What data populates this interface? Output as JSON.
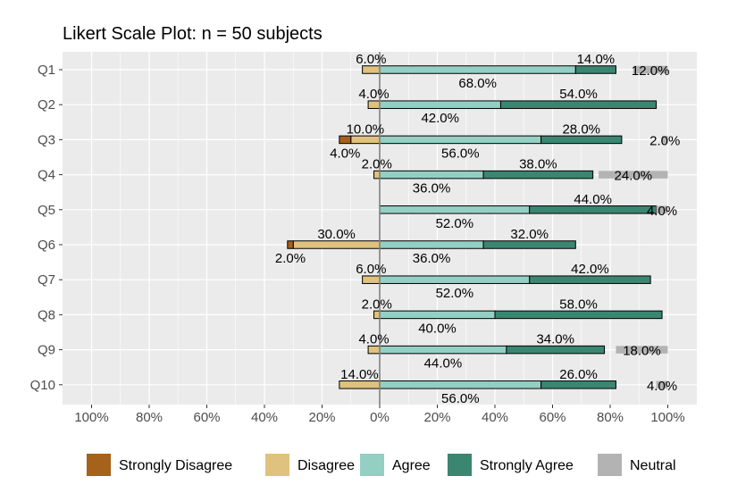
{
  "chart_data": {
    "type": "bar",
    "orientation": "horizontal-diverging-stacked",
    "title": "Likert Scale Plot: n = 50 subjects",
    "xlim": [
      -1,
      1
    ],
    "x_ticks": [
      "100%",
      "80%",
      "60%",
      "40%",
      "20%",
      "0%",
      "20%",
      "40%",
      "60%",
      "80%",
      "100%"
    ],
    "categories": [
      "Q1",
      "Q2",
      "Q3",
      "Q4",
      "Q5",
      "Q6",
      "Q7",
      "Q8",
      "Q9",
      "Q10"
    ],
    "series": [
      {
        "name": "Strongly Disagree",
        "color": "#a6611a",
        "values": [
          0,
          0,
          4,
          0,
          0,
          2,
          0,
          0,
          0,
          0
        ],
        "labels": [
          "",
          "",
          "4.0%",
          "",
          "",
          "2.0%",
          "",
          "",
          "",
          ""
        ]
      },
      {
        "name": "Disagree",
        "color": "#dfc27d",
        "values": [
          6,
          4,
          10,
          2,
          0,
          30,
          6,
          2,
          4,
          14
        ],
        "labels": [
          "6.0%",
          "4.0%",
          "10.0%",
          "2.0%",
          "",
          "30.0%",
          "6.0%",
          "2.0%",
          "4.0%",
          "14.0%"
        ]
      },
      {
        "name": "Agree",
        "color": "#94cfc4",
        "values": [
          68,
          42,
          56,
          36,
          52,
          36,
          52,
          40,
          44,
          56
        ],
        "labels": [
          "68.0%",
          "42.0%",
          "56.0%",
          "36.0%",
          "52.0%",
          "36.0%",
          "52.0%",
          "40.0%",
          "44.0%",
          "56.0%"
        ]
      },
      {
        "name": "Strongly Agree",
        "color": "#3b8670",
        "values": [
          14,
          54,
          28,
          38,
          44,
          32,
          42,
          58,
          34,
          26
        ],
        "labels": [
          "14.0%",
          "54.0%",
          "28.0%",
          "38.0%",
          "44.0%",
          "32.0%",
          "42.0%",
          "58.0%",
          "34.0%",
          "26.0%"
        ]
      },
      {
        "name": "Neutral",
        "color": "#b3b3b3",
        "values": [
          12,
          0,
          2,
          24,
          4,
          0,
          0,
          0,
          18,
          4
        ],
        "labels": [
          "12.0%",
          "",
          "2.0%",
          "24.0%",
          "4.0%",
          "",
          "",
          "",
          "18.0%",
          "4.0%"
        ]
      }
    ],
    "legend_position": "bottom",
    "grid": true
  }
}
